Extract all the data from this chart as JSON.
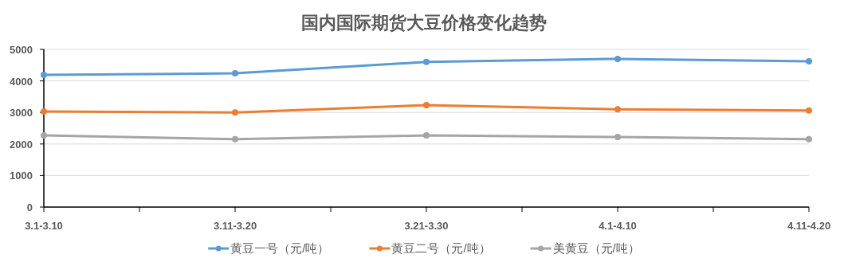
{
  "chart_data": {
    "type": "line",
    "title": "国内国际期货大豆价格变化趋势",
    "categories": [
      "3.1-3.10",
      "3.11-3.20",
      "3.21-3.30",
      "4.1-4.10",
      "4.11-4.20"
    ],
    "series": [
      {
        "name": "黄豆一号（元/吨）",
        "color": "#5b9bd5",
        "values": [
          4190,
          4240,
          4600,
          4700,
          4620
        ]
      },
      {
        "name": "黄豆二号（元/吨）",
        "color": "#ed7d31",
        "values": [
          3030,
          3000,
          3230,
          3100,
          3060
        ]
      },
      {
        "name": "美黄豆（元/吨）",
        "color": "#a5a5a5",
        "values": [
          2270,
          2150,
          2270,
          2220,
          2150
        ]
      }
    ],
    "ylim": [
      0,
      5000
    ],
    "yticks": [
      0,
      1000,
      2000,
      3000,
      4000,
      5000
    ],
    "grid": "y",
    "legend": "bottom",
    "marker": "circle",
    "line_style": "solid"
  }
}
